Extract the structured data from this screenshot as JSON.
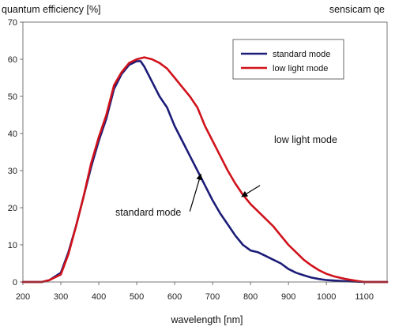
{
  "chart_data": {
    "type": "line",
    "title": "sensicam qe",
    "ylabel": "quantum efficiency [%]",
    "xlabel": "wavelength [nm]",
    "xlim": [
      200,
      1160
    ],
    "ylim": [
      0,
      70
    ],
    "x_ticks": [
      "200",
      "300",
      "400",
      "500",
      "600",
      "700",
      "800",
      "900",
      "1000",
      "1100"
    ],
    "y_ticks": [
      "0",
      "10",
      "20",
      "30",
      "40",
      "50",
      "60",
      "70"
    ],
    "grid": false,
    "legend_position": "top-right",
    "series": [
      {
        "name": "standard mode",
        "color": "#1c1c78",
        "points": [
          [
            200,
            0
          ],
          [
            250,
            0
          ],
          [
            270,
            0.5
          ],
          [
            300,
            2.5
          ],
          [
            320,
            8
          ],
          [
            340,
            15
          ],
          [
            360,
            23
          ],
          [
            380,
            31
          ],
          [
            400,
            38
          ],
          [
            420,
            44
          ],
          [
            440,
            52
          ],
          [
            460,
            56
          ],
          [
            480,
            58.5
          ],
          [
            500,
            59.5
          ],
          [
            510,
            59.5
          ],
          [
            520,
            58
          ],
          [
            540,
            54
          ],
          [
            560,
            50
          ],
          [
            580,
            47
          ],
          [
            600,
            42
          ],
          [
            620,
            38
          ],
          [
            640,
            34
          ],
          [
            660,
            30
          ],
          [
            680,
            26
          ],
          [
            700,
            22
          ],
          [
            720,
            18.5
          ],
          [
            740,
            15.5
          ],
          [
            760,
            12.5
          ],
          [
            780,
            10
          ],
          [
            800,
            8.5
          ],
          [
            820,
            8
          ],
          [
            840,
            7
          ],
          [
            860,
            6
          ],
          [
            880,
            5
          ],
          [
            900,
            3.5
          ],
          [
            920,
            2.5
          ],
          [
            940,
            1.8
          ],
          [
            960,
            1.2
          ],
          [
            980,
            0.8
          ],
          [
            1000,
            0.5
          ],
          [
            1050,
            0.2
          ],
          [
            1100,
            0
          ],
          [
            1160,
            0
          ]
        ]
      },
      {
        "name": "low light mode",
        "color": "#d0121b",
        "points": [
          [
            200,
            0
          ],
          [
            250,
            0
          ],
          [
            270,
            0.5
          ],
          [
            300,
            2
          ],
          [
            320,
            7.5
          ],
          [
            340,
            15
          ],
          [
            360,
            23
          ],
          [
            380,
            32
          ],
          [
            400,
            39
          ],
          [
            420,
            45
          ],
          [
            440,
            53
          ],
          [
            460,
            56.5
          ],
          [
            480,
            59
          ],
          [
            500,
            60
          ],
          [
            520,
            60.5
          ],
          [
            540,
            60
          ],
          [
            560,
            59
          ],
          [
            580,
            57.5
          ],
          [
            600,
            55
          ],
          [
            620,
            52.5
          ],
          [
            640,
            50
          ],
          [
            660,
            47
          ],
          [
            680,
            42
          ],
          [
            700,
            38
          ],
          [
            720,
            34
          ],
          [
            740,
            30
          ],
          [
            760,
            26.5
          ],
          [
            780,
            23.5
          ],
          [
            800,
            21
          ],
          [
            820,
            19
          ],
          [
            840,
            17
          ],
          [
            860,
            15
          ],
          [
            880,
            12.5
          ],
          [
            900,
            10
          ],
          [
            920,
            8
          ],
          [
            940,
            6
          ],
          [
            960,
            4.5
          ],
          [
            980,
            3.2
          ],
          [
            1000,
            2.2
          ],
          [
            1020,
            1.5
          ],
          [
            1050,
            0.8
          ],
          [
            1080,
            0.3
          ],
          [
            1100,
            0
          ],
          [
            1160,
            0
          ]
        ]
      }
    ],
    "annotations": [
      {
        "text": "low light mode",
        "series": "low light mode",
        "arrow_from": [
          825,
          26
        ],
        "arrow_to": [
          777,
          23
        ]
      },
      {
        "text": "standard mode",
        "series": "standard mode",
        "arrow_from": [
          640,
          19
        ],
        "arrow_to": [
          669,
          29
        ]
      }
    ]
  }
}
